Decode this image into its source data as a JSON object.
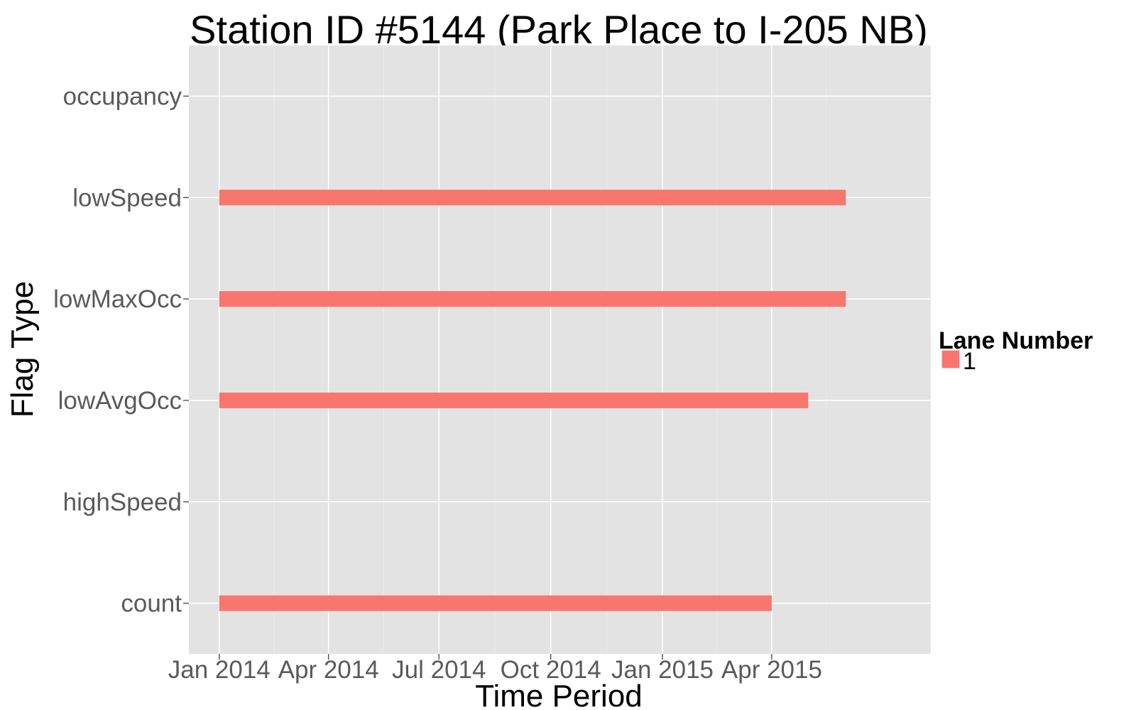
{
  "chart_data": {
    "type": "bar",
    "orientation": "horizontal-timeline",
    "title": "Station ID #5144 (Park Place to I-205 NB)",
    "xlabel": "Time Period",
    "ylabel": "Flag Type",
    "categories": [
      "count",
      "highSpeed",
      "lowAvgOcc",
      "lowMaxOcc",
      "lowSpeed",
      "occupancy"
    ],
    "x_ticks": [
      {
        "date": "2014-01-01",
        "label": "Jan 2014"
      },
      {
        "date": "2014-04-01",
        "label": "Apr 2014"
      },
      {
        "date": "2014-07-01",
        "label": "Jul 2014"
      },
      {
        "date": "2014-10-01",
        "label": "Oct 2014"
      },
      {
        "date": "2015-01-01",
        "label": "Jan 2015"
      },
      {
        "date": "2015-04-01",
        "label": "Apr 2015"
      }
    ],
    "xlim": [
      "2013-12-07",
      "2015-08-10"
    ],
    "grid": true,
    "legend": {
      "title": "Lane Number",
      "position": "right",
      "entries": [
        {
          "label": "1",
          "color": "#F8766D"
        }
      ]
    },
    "series": [
      {
        "name": "1",
        "color": "#F8766D",
        "segments": [
          {
            "category": "count",
            "start": "2014-01-01",
            "end": "2015-04-01"
          },
          {
            "category": "lowAvgOcc",
            "start": "2014-01-01",
            "end": "2015-05-01"
          },
          {
            "category": "lowMaxOcc",
            "start": "2014-01-01",
            "end": "2015-06-01"
          },
          {
            "category": "lowSpeed",
            "start": "2014-01-01",
            "end": "2015-06-01"
          }
        ]
      }
    ]
  }
}
